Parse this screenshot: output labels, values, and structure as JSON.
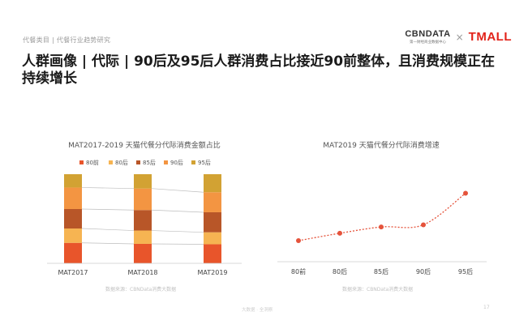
{
  "header": {
    "breadcrumb": "代餐类目 | 代餐行业趋势研究",
    "logo_cbn": "CBNDATA",
    "logo_cbn_sub": "第一财经商业数据中心",
    "logo_separator": "×",
    "logo_tmall": "TMALL"
  },
  "title": "人群画像 | 代际 | 90后及95后人群消费占比接近90前整体，且消费规模正在持续增长",
  "chart_data": [
    {
      "type": "bar",
      "stacked": true,
      "title": "MAT2017-2019 天猫代餐分代际消费金额占比",
      "legend_position": "top",
      "categories": [
        "MAT2017",
        "MAT2018",
        "MAT2019"
      ],
      "series": [
        {
          "name": "80前",
          "color": "#e8552b",
          "values": [
            0.2,
            0.19,
            0.19
          ]
        },
        {
          "name": "80后",
          "color": "#f6b452",
          "values": [
            0.14,
            0.13,
            0.12
          ]
        },
        {
          "name": "85后",
          "color": "#b85628",
          "values": [
            0.19,
            0.2,
            0.2
          ]
        },
        {
          "name": "90后",
          "color": "#f39542",
          "values": [
            0.21,
            0.21,
            0.2
          ]
        },
        {
          "name": "95后",
          "color": "#d2a233",
          "values": [
            0.13,
            0.14,
            0.18
          ]
        }
      ],
      "ylim": [
        0,
        1
      ],
      "source": "数据来源：CBNData消费大数据"
    },
    {
      "type": "line",
      "title": "MAT2019 天猫代餐分代际消费增速",
      "categories": [
        "80前",
        "80后",
        "85后",
        "90后",
        "95后"
      ],
      "values": [
        20,
        27,
        33,
        35,
        65
      ],
      "ylim": [
        0,
        100
      ],
      "line_color": "#e5533b",
      "source": "数据来源：CBNData消费大数据"
    }
  ],
  "footer": {
    "center_text": "大数据 · 全洞察",
    "page_number": "17"
  }
}
